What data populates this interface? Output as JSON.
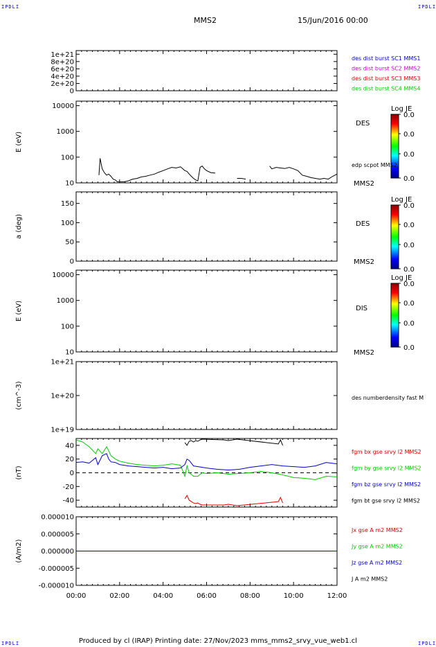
{
  "corner_label": "IPDLI",
  "header": {
    "spacecraft": "MMS2",
    "date_time": "15/Jun/2016 00:00"
  },
  "footer": {
    "text": "Produced by cl (IRAP)   Printing date: 27/Nov/2023   mms_mms2_srvy_vue_web1.cl"
  },
  "colors": {
    "c1": "#0000cc",
    "c2": "#cc00cc",
    "c3": "#dd0000",
    "c4": "#00cc00",
    "black": "#000000"
  },
  "colorbar_labels": {
    "title": "Log JE",
    "tick": "0.0"
  },
  "chart_data": [
    {
      "type": "line",
      "id": "panel1",
      "ylabel": "",
      "yticks": [
        "1e+21",
        "8e+20",
        "6e+20",
        "4e+20",
        "2e+20",
        "0"
      ],
      "ylim": [
        0,
        1.1e+21
      ],
      "dashed_zero": true,
      "legend": [
        {
          "text": "des dist burst SC1 MMS1",
          "color": "#0000cc"
        },
        {
          "text": "des dist burst SC2 MMS2",
          "color": "#cc00cc"
        },
        {
          "text": "des dist burst SC3 MMS3",
          "color": "#dd0000"
        },
        {
          "text": "des dist burst SC4 MMS4",
          "color": "#00cc00"
        }
      ]
    },
    {
      "type": "line",
      "id": "panel2",
      "ylabel": "E (eV)",
      "yscale": "log",
      "ylim": [
        10,
        15000
      ],
      "yticks": [
        "10000",
        "1000",
        "100",
        "10"
      ],
      "right_label": "DES",
      "right_sub": "MMS2",
      "series_label": "edp scpot MMS2",
      "series": [
        {
          "name": "edp scpot MMS2",
          "color": "#000000",
          "x": [
            0.0,
            0.2,
            0.4,
            0.6,
            0.8,
            0.9,
            0.95,
            1.0,
            1.05,
            1.1,
            1.2,
            1.3,
            1.4,
            1.5,
            1.6,
            1.7,
            1.8,
            1.9,
            2.0,
            2.2,
            2.4,
            2.6,
            2.8,
            3.0,
            3.2,
            3.4,
            3.6,
            3.8,
            4.0,
            4.2,
            4.4,
            4.6,
            4.8,
            5.0,
            5.1,
            5.2,
            5.3,
            5.4,
            5.5,
            5.6,
            5.7,
            5.8,
            5.9,
            6.0,
            6.2,
            6.4,
            6.6,
            6.8,
            7.0,
            7.2,
            7.4,
            7.6,
            7.8,
            8.0,
            8.2,
            8.4,
            8.6,
            8.8,
            8.9,
            9.0,
            9.2,
            9.4,
            9.6,
            9.8,
            10.0,
            10.2,
            10.4,
            10.6,
            10.8,
            11.0,
            11.2,
            11.4,
            11.6,
            11.8,
            12.0
          ],
          "y": [
            null,
            null,
            null,
            null,
            null,
            null,
            null,
            null,
            20,
            90,
            35,
            25,
            20,
            22,
            18,
            14,
            13,
            11,
            11,
            11,
            12,
            14,
            15,
            17,
            18,
            20,
            22,
            26,
            30,
            35,
            40,
            38,
            42,
            30,
            28,
            22,
            18,
            15,
            13,
            12,
            40,
            45,
            35,
            30,
            25,
            24,
            null,
            null,
            null,
            null,
            15,
            15,
            14,
            null,
            null,
            null,
            null,
            null,
            45,
            35,
            40,
            38,
            36,
            40,
            35,
            30,
            20,
            18,
            16,
            15,
            14,
            15,
            14,
            18,
            22
          ]
        }
      ]
    },
    {
      "type": "line",
      "id": "panel3",
      "ylabel": "a (deg)",
      "ylim": [
        0,
        180
      ],
      "yticks": [
        "150",
        "100",
        "50",
        "0"
      ],
      "right_label": "DES",
      "right_sub": "MMS2"
    },
    {
      "type": "line",
      "id": "panel4",
      "ylabel": "E (eV)",
      "yscale": "log",
      "ylim": [
        10,
        15000
      ],
      "yticks": [
        "10000",
        "1000",
        "100",
        "10"
      ],
      "right_label": "DIS",
      "right_sub": "MMS2"
    },
    {
      "type": "line",
      "id": "panel5",
      "ylabel": "(cm^-3)",
      "yscale": "log",
      "ylim": [
        1e+19,
        1e+21
      ],
      "yticks": [
        "1e+21",
        "1e+20",
        "1e+19"
      ],
      "series_label": "des numberdensity fast M"
    },
    {
      "type": "line",
      "id": "panel6",
      "ylabel": "(nT)",
      "ylim": [
        -50,
        50
      ],
      "yticks": [
        "40",
        "20",
        "0",
        "-20",
        "-40"
      ],
      "dashed_zero": true,
      "legend": [
        {
          "text": "fgm bx gse srvy l2 MMS2",
          "color": "#dd0000"
        },
        {
          "text": "fgm by gse srvy l2 MMS2",
          "color": "#00cc00"
        },
        {
          "text": "fgm bz gse srvy l2 MMS2",
          "color": "#0000cc"
        },
        {
          "text": "fgm bt gse srvy l2 MMS2",
          "color": "#000000"
        }
      ],
      "series": [
        {
          "name": "fgm bx gse srvy l2 MMS2",
          "color": "#dd0000",
          "x": [
            5.0,
            5.1,
            5.2,
            5.3,
            5.4,
            5.5,
            5.6,
            5.7,
            5.8,
            6.8,
            7.0,
            7.2,
            7.4,
            9.3,
            9.4,
            9.5
          ],
          "y": [
            -38,
            -33,
            -40,
            -42,
            -44,
            -45,
            -44,
            -46,
            -47,
            -47,
            -46,
            -47,
            -48,
            -42,
            -36,
            -44
          ]
        },
        {
          "name": "fgm by gse srvy l2 MMS2",
          "color": "#00cc00",
          "x": [
            0.0,
            0.3,
            0.6,
            0.9,
            1.0,
            1.2,
            1.4,
            1.5,
            1.6,
            1.8,
            2.0,
            2.4,
            2.8,
            3.2,
            3.6,
            4.0,
            4.4,
            4.8,
            5.0,
            5.1,
            5.2,
            5.4,
            5.6,
            5.8,
            6.0,
            6.5,
            7.0,
            7.5,
            8.0,
            8.5,
            9.0,
            9.5,
            10.0,
            10.5,
            11.0,
            11.5,
            12.0
          ],
          "y": [
            48,
            45,
            38,
            28,
            35,
            28,
            38,
            32,
            25,
            20,
            17,
            14,
            12,
            11,
            10,
            11,
            13,
            11,
            -5,
            10,
            0,
            -5,
            -5,
            0,
            -1,
            0,
            -2,
            -1,
            0,
            2,
            0,
            -3,
            -7,
            -8,
            -10,
            -5,
            -6
          ]
        },
        {
          "name": "fgm bz gse srvy l2 MMS2",
          "color": "#0000cc",
          "x": [
            0.0,
            0.3,
            0.6,
            0.9,
            1.0,
            1.2,
            1.4,
            1.5,
            1.6,
            1.8,
            2.0,
            2.4,
            2.8,
            3.2,
            3.6,
            4.0,
            4.4,
            4.8,
            5.0,
            5.1,
            5.2,
            5.4,
            5.6,
            5.8,
            6.0,
            6.5,
            7.0,
            7.5,
            8.0,
            8.5,
            9.0,
            9.5,
            10.0,
            10.5,
            11.0,
            11.5,
            12.0
          ],
          "y": [
            15,
            16,
            14,
            22,
            12,
            25,
            28,
            20,
            16,
            15,
            12,
            10,
            9,
            8,
            7,
            8,
            6,
            7,
            12,
            20,
            18,
            10,
            9,
            8,
            7,
            5,
            4,
            5,
            8,
            10,
            12,
            10,
            9,
            8,
            10,
            15,
            13
          ]
        },
        {
          "name": "fgm bt gse srvy l2 MMS2",
          "color": "#000000",
          "x": [
            5.0,
            5.1,
            5.2,
            5.3,
            5.4,
            5.5,
            5.6,
            5.7,
            5.8,
            6.8,
            7.0,
            7.2,
            7.4,
            9.3,
            9.4,
            9.5
          ],
          "y": [
            44,
            40,
            46,
            47,
            45,
            47,
            46,
            48,
            49,
            48,
            47,
            48,
            49,
            42,
            48,
            40
          ]
        }
      ]
    },
    {
      "type": "line",
      "id": "panel7",
      "ylabel": "(A/m2)",
      "ylim": [
        -1e-05,
        1e-05
      ],
      "yticks": [
        "0.000010",
        "0.000005",
        "0.000000",
        "-0.000005",
        "-0.000010"
      ],
      "legend": [
        {
          "text": "Jx gse A m2 MMS2",
          "color": "#dd0000"
        },
        {
          "text": "Jy gse A m2 MMS2",
          "color": "#00cc00"
        },
        {
          "text": "Jz gse A m2 MMS2",
          "color": "#0000cc"
        },
        {
          "text": "J A m2 MMS2",
          "color": "#000000"
        }
      ],
      "series": [
        {
          "name": "J A m2 MMS2",
          "color": "#000000",
          "x": [
            0,
            1,
            2,
            3,
            4,
            5,
            6,
            7,
            8,
            9,
            10,
            11,
            12
          ],
          "y": [
            0,
            0,
            0,
            0,
            0,
            0,
            0,
            0,
            0,
            0,
            0,
            0,
            0
          ]
        },
        {
          "name": "Jz gse A m2 MMS2",
          "color": "#0000cc",
          "x": [
            0,
            1,
            2,
            3,
            4,
            5,
            6,
            7,
            8,
            9,
            10,
            11,
            12
          ],
          "y": [
            0,
            0,
            0,
            0,
            0,
            0,
            0,
            0,
            0,
            0,
            0,
            0,
            0
          ]
        }
      ]
    }
  ],
  "xaxis": {
    "ticks": [
      "00:00",
      "02:00",
      "04:00",
      "06:00",
      "08:00",
      "10:00",
      "12:00"
    ],
    "xlim": [
      0,
      12
    ]
  }
}
